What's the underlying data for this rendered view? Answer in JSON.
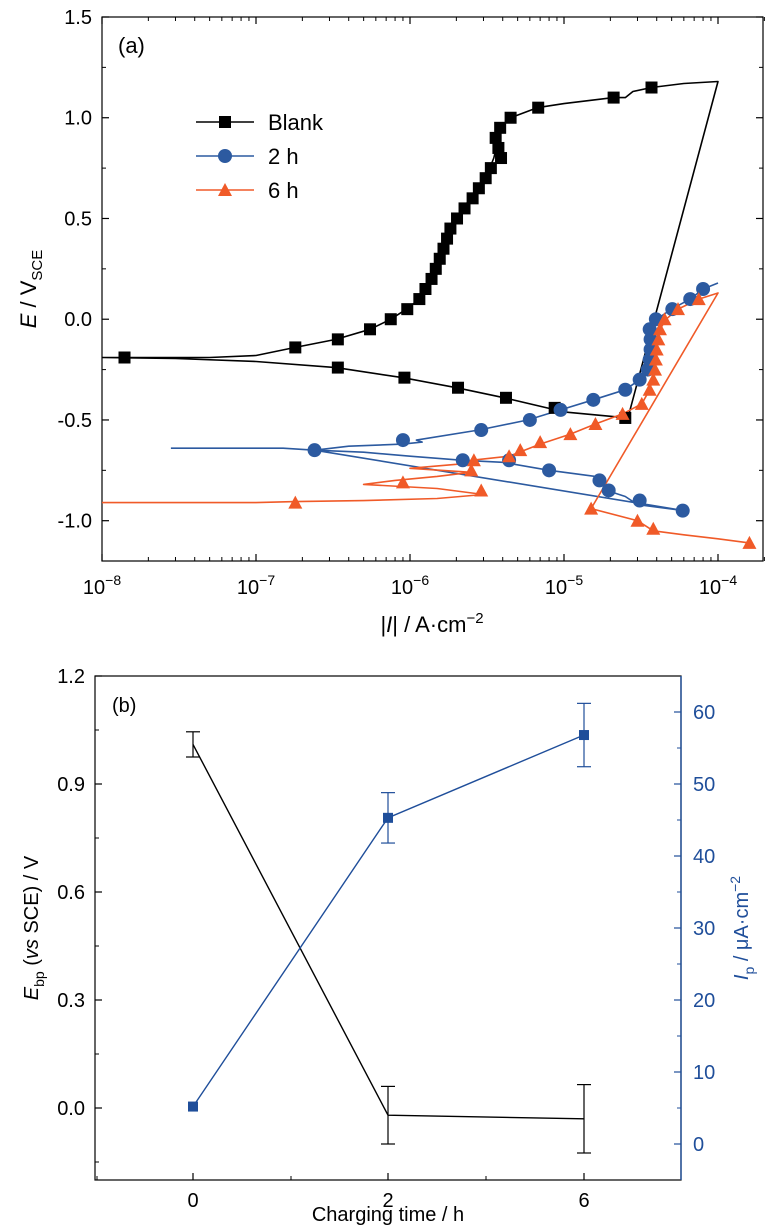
{
  "chart_data": [
    {
      "panel_label": "(a)",
      "type": "line",
      "x_scale": "log",
      "xlim": [
        1e-08,
        0.0002
      ],
      "ylim": [
        -1.2,
        1.5
      ],
      "xlabel": {
        "bar_open": "|",
        "italic": "I",
        "bar_close": "|",
        "rest": " / A·cm",
        "sup": "−2"
      },
      "ylabel": {
        "italic": "E",
        "rest": " / V",
        "sub": "SCE"
      },
      "x_ticks": [
        {
          "value": 1e-08,
          "base": "10",
          "exp": "−8"
        },
        {
          "value": 1e-07,
          "base": "10",
          "exp": "−7"
        },
        {
          "value": 1e-06,
          "base": "10",
          "exp": "−6"
        },
        {
          "value": 1e-05,
          "base": "10",
          "exp": "−5"
        },
        {
          "value": 0.0001,
          "base": "10",
          "exp": "−4"
        }
      ],
      "y_ticks": [
        "1.5",
        "1.0",
        "0.5",
        "0.0",
        "-0.5",
        "-1.0"
      ],
      "legend_position": "top-left",
      "series": [
        {
          "name": "Blank",
          "color": "#000000",
          "marker": "square",
          "line": [
            [
              1e-08,
              -0.19
            ],
            [
              2e-08,
              -0.19
            ],
            [
              5e-08,
              -0.19
            ],
            [
              1e-07,
              -0.18
            ],
            [
              1.8e-07,
              -0.14
            ],
            [
              3.3e-07,
              -0.1
            ],
            [
              5.5e-07,
              -0.05
            ],
            [
              7.5e-07,
              0.0
            ],
            [
              9.5e-07,
              0.05
            ],
            [
              1.15e-06,
              0.1
            ],
            [
              1.35e-06,
              0.2
            ],
            [
              1.6e-06,
              0.35
            ],
            [
              1.9e-06,
              0.45
            ],
            [
              2.2e-06,
              0.55
            ],
            [
              2.6e-06,
              0.62
            ],
            [
              3.1e-06,
              0.7
            ],
            [
              3.5e-06,
              0.8
            ],
            [
              3.9e-06,
              0.95
            ],
            [
              4.5e-06,
              1.0
            ],
            [
              6.7e-06,
              1.05
            ],
            [
              1e-05,
              1.07
            ],
            [
              2.1e-05,
              1.1
            ],
            [
              2.5e-05,
              1.1
            ],
            [
              2.8e-05,
              1.13
            ],
            [
              3.7e-05,
              1.15
            ],
            [
              6e-05,
              1.17
            ],
            [
              0.0001,
              1.18
            ],
            [
              2.6e-05,
              -0.49
            ],
            [
              1e-05,
              -0.46
            ],
            [
              4.1e-06,
              -0.39
            ],
            [
              2e-06,
              -0.34
            ],
            [
              9e-07,
              -0.29
            ],
            [
              3.3e-07,
              -0.24
            ],
            [
              1e-07,
              -0.21
            ],
            [
              3e-08,
              -0.195
            ],
            [
              1e-08,
              -0.19
            ]
          ],
          "points": [
            [
              1.4e-08,
              -0.19
            ],
            [
              1.8e-07,
              -0.14
            ],
            [
              3.4e-07,
              -0.1
            ],
            [
              5.5e-07,
              -0.05
            ],
            [
              7.5e-07,
              0.0
            ],
            [
              9.6e-07,
              0.05
            ],
            [
              1.15e-06,
              0.1
            ],
            [
              1.26e-06,
              0.15
            ],
            [
              1.38e-06,
              0.2
            ],
            [
              1.47e-06,
              0.25
            ],
            [
              1.56e-06,
              0.3
            ],
            [
              1.65e-06,
              0.35
            ],
            [
              1.74e-06,
              0.4
            ],
            [
              1.83e-06,
              0.45
            ],
            [
              2.02e-06,
              0.5
            ],
            [
              2.26e-06,
              0.55
            ],
            [
              2.55e-06,
              0.6
            ],
            [
              2.8e-06,
              0.65
            ],
            [
              3.1e-06,
              0.7
            ],
            [
              3.35e-06,
              0.75
            ],
            [
              3.9e-06,
              0.8
            ],
            [
              3.75e-06,
              0.85
            ],
            [
              3.6e-06,
              0.9
            ],
            [
              3.85e-06,
              0.95
            ],
            [
              4.5e-06,
              1.0
            ],
            [
              6.8e-06,
              1.05
            ],
            [
              2.1e-05,
              1.1
            ],
            [
              3.7e-05,
              1.15
            ],
            [
              2.5e-05,
              -0.49
            ],
            [
              8.7e-06,
              -0.44
            ],
            [
              4.2e-06,
              -0.39
            ],
            [
              2.05e-06,
              -0.34
            ],
            [
              9.2e-07,
              -0.29
            ],
            [
              3.4e-07,
              -0.24
            ]
          ]
        },
        {
          "name": "2 h",
          "color": "#2c5aa0",
          "marker": "circle",
          "line": [
            [
              2.8e-08,
              -0.64
            ],
            [
              1e-07,
              -0.64
            ],
            [
              1.5e-07,
              -0.64
            ],
            [
              2.4e-07,
              -0.65
            ],
            [
              5e-07,
              -0.66
            ],
            [
              1e-06,
              -0.68
            ],
            [
              2.2e-06,
              -0.7
            ],
            [
              4e-06,
              -0.71
            ],
            [
              8e-06,
              -0.75
            ],
            [
              1.6e-05,
              -0.78
            ],
            [
              1.9e-05,
              -0.85
            ],
            [
              2.5e-05,
              -0.88
            ],
            [
              3e-05,
              -0.92
            ],
            [
              6e-05,
              -0.95
            ],
            [
              2.4e-07,
              -0.65
            ],
            [
              4e-07,
              -0.63
            ],
            [
              9e-07,
              -0.62
            ],
            [
              1.2e-06,
              -0.61
            ],
            [
              1.1e-06,
              -0.6
            ],
            [
              2.8e-06,
              -0.55
            ],
            [
              5.8e-06,
              -0.5
            ],
            [
              9.5e-06,
              -0.45
            ],
            [
              1.55e-05,
              -0.4
            ],
            [
              2.5e-05,
              -0.35
            ],
            [
              3.1e-05,
              -0.3
            ],
            [
              3.5e-05,
              -0.25
            ],
            [
              3.6e-05,
              -0.15
            ],
            [
              3.8e-05,
              -0.05
            ],
            [
              4e-05,
              0.0
            ],
            [
              5e-05,
              0.05
            ],
            [
              6.6e-05,
              0.1
            ],
            [
              8e-05,
              0.15
            ],
            [
              0.0001,
              0.18
            ]
          ],
          "points": [
            [
              2.4e-07,
              -0.65
            ],
            [
              9e-07,
              -0.6
            ],
            [
              2.9e-06,
              -0.55
            ],
            [
              6e-06,
              -0.5
            ],
            [
              9.5e-06,
              -0.45
            ],
            [
              1.55e-05,
              -0.4
            ],
            [
              2.5e-05,
              -0.35
            ],
            [
              3.1e-05,
              -0.3
            ],
            [
              3.5e-05,
              -0.25
            ],
            [
              3.6e-05,
              -0.2
            ],
            [
              3.65e-05,
              -0.15
            ],
            [
              3.65e-05,
              -0.1
            ],
            [
              3.6e-05,
              -0.05
            ],
            [
              3.95e-05,
              0.0
            ],
            [
              5.05e-05,
              0.05
            ],
            [
              6.6e-05,
              0.1
            ],
            [
              8e-05,
              0.15
            ],
            [
              2.2e-06,
              -0.7
            ],
            [
              4.4e-06,
              -0.7
            ],
            [
              8e-06,
              -0.75
            ],
            [
              1.7e-05,
              -0.8
            ],
            [
              1.95e-05,
              -0.85
            ],
            [
              3.1e-05,
              -0.9
            ],
            [
              5.9e-05,
              -0.95
            ]
          ]
        },
        {
          "name": "6 h",
          "color": "#f05a28",
          "marker": "triangle",
          "line": [
            [
              1e-08,
              -0.91
            ],
            [
              1e-07,
              -0.91
            ],
            [
              1.8e-07,
              -0.905
            ],
            [
              5e-07,
              -0.9
            ],
            [
              1.5e-06,
              -0.89
            ],
            [
              3e-06,
              -0.87
            ],
            [
              1.5e-06,
              -0.84
            ],
            [
              5e-07,
              -0.82
            ],
            [
              8e-07,
              -0.8
            ],
            [
              1.5e-06,
              -0.78
            ],
            [
              2.5e-06,
              -0.76
            ],
            [
              1e-06,
              -0.74
            ],
            [
              2e-06,
              -0.72
            ],
            [
              2.5e-06,
              -0.7
            ],
            [
              4.4e-06,
              -0.68
            ],
            [
              7e-06,
              -0.62
            ],
            [
              1.1e-05,
              -0.57
            ],
            [
              1.6e-05,
              -0.52
            ],
            [
              2.4e-05,
              -0.47
            ],
            [
              3.2e-05,
              -0.42
            ],
            [
              3.6e-05,
              -0.35
            ],
            [
              3.9e-05,
              -0.25
            ],
            [
              4e-05,
              -0.15
            ],
            [
              4.2e-05,
              -0.05
            ],
            [
              4.6e-05,
              0.0
            ],
            [
              5.5e-05,
              0.05
            ],
            [
              7.5e-05,
              0.1
            ],
            [
              0.0001,
              0.13
            ],
            [
              1.5e-05,
              -0.94
            ],
            [
              3e-05,
              -1.0
            ],
            [
              3.8e-05,
              -1.05
            ],
            [
              6e-05,
              -1.07
            ],
            [
              0.0001,
              -1.09
            ],
            [
              0.00016,
              -1.11
            ]
          ],
          "points": [
            [
              1.8e-07,
              -0.91
            ],
            [
              9e-07,
              -0.81
            ],
            [
              2.9e-06,
              -0.85
            ],
            [
              2.5e-06,
              -0.75
            ],
            [
              2.6e-06,
              -0.7
            ],
            [
              4.4e-06,
              -0.68
            ],
            [
              5.2e-06,
              -0.65
            ],
            [
              7e-06,
              -0.61
            ],
            [
              1.1e-05,
              -0.57
            ],
            [
              1.6e-05,
              -0.52
            ],
            [
              2.4e-05,
              -0.47
            ],
            [
              3.2e-05,
              -0.42
            ],
            [
              3.6e-05,
              -0.35
            ],
            [
              3.8e-05,
              -0.3
            ],
            [
              3.9e-05,
              -0.25
            ],
            [
              3.95e-05,
              -0.2
            ],
            [
              4e-05,
              -0.15
            ],
            [
              4.1e-05,
              -0.1
            ],
            [
              4.2e-05,
              -0.05
            ],
            [
              4.5e-05,
              0.0
            ],
            [
              5.5e-05,
              0.05
            ],
            [
              7.5e-05,
              0.1
            ],
            [
              1.5e-05,
              -0.94
            ],
            [
              3e-05,
              -1.0
            ],
            [
              3.8e-05,
              -1.04
            ],
            [
              0.00016,
              -1.11
            ]
          ]
        }
      ]
    },
    {
      "panel_label": "(b)",
      "type": "line",
      "x": [
        "0",
        "2",
        "6"
      ],
      "xlabel": "Charging time / h",
      "ylabel_left": {
        "italic": "E",
        "sub": "bp",
        "open": " (",
        "italic2": "vs",
        "rest": " SCE) / V"
      },
      "ylabel_right": {
        "italic": "I",
        "sub": "p",
        "rest": " / μA·cm",
        "sup": "−2"
      },
      "ylim_left": [
        -0.2,
        1.2
      ],
      "ylim_right": [
        -5,
        65
      ],
      "y_ticks_left": [
        "1.2",
        "0.9",
        "0.6",
        "0.3",
        "0.0"
      ],
      "y_ticks_right": [
        "0",
        "10",
        "20",
        "30",
        "40",
        "50",
        "60"
      ],
      "series": [
        {
          "axis": "left",
          "color": "#000000",
          "marker": "none",
          "values": [
            1.01,
            -0.02,
            -0.03
          ],
          "errors": [
            0.035,
            0.08,
            0.095
          ]
        },
        {
          "axis": "right",
          "color": "#1f4e9a",
          "marker": "square",
          "values": [
            5.2,
            45.3,
            56.8
          ],
          "errors": [
            0,
            3.5,
            4.4
          ]
        }
      ]
    }
  ]
}
